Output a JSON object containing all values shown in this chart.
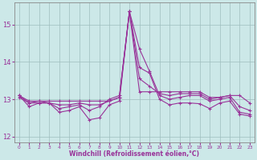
{
  "xlabel": "Windchill (Refroidissement éolien,°C)",
  "x": [
    0,
    1,
    2,
    3,
    4,
    5,
    6,
    7,
    8,
    9,
    10,
    11,
    12,
    13,
    14,
    15,
    16,
    17,
    18,
    19,
    20,
    21,
    22,
    23
  ],
  "line1": [
    13.1,
    12.95,
    12.95,
    12.95,
    12.95,
    12.95,
    12.95,
    12.95,
    12.95,
    12.95,
    13.05,
    15.35,
    13.2,
    13.2,
    13.2,
    13.2,
    13.2,
    13.2,
    13.2,
    13.05,
    13.05,
    13.1,
    13.1,
    12.9
  ],
  "line2": [
    13.05,
    12.9,
    12.9,
    12.9,
    12.85,
    12.85,
    12.9,
    12.85,
    12.85,
    12.95,
    13.05,
    15.35,
    13.55,
    13.35,
    13.15,
    13.1,
    13.15,
    13.15,
    13.15,
    13.0,
    13.05,
    13.1,
    12.8,
    12.7
  ],
  "line3": [
    13.1,
    12.9,
    12.95,
    12.9,
    12.75,
    12.8,
    12.85,
    12.7,
    12.8,
    13.0,
    13.1,
    15.35,
    14.35,
    13.75,
    13.1,
    13.0,
    13.05,
    13.1,
    13.1,
    12.95,
    13.0,
    13.05,
    12.65,
    12.6
  ],
  "line4": [
    13.1,
    12.8,
    12.9,
    12.9,
    12.65,
    12.7,
    12.8,
    12.45,
    12.5,
    12.85,
    12.95,
    15.35,
    13.85,
    13.7,
    13.0,
    12.85,
    12.9,
    12.9,
    12.88,
    12.75,
    12.9,
    12.95,
    12.6,
    12.55
  ],
  "line_color": "#993399",
  "bg_color": "#cce8e8",
  "grid_color": "#9fbebe",
  "ylim": [
    11.85,
    15.6
  ],
  "yticks": [
    12,
    13,
    14,
    15
  ],
  "marker": "+",
  "markersize": 3,
  "linewidth": 0.8
}
